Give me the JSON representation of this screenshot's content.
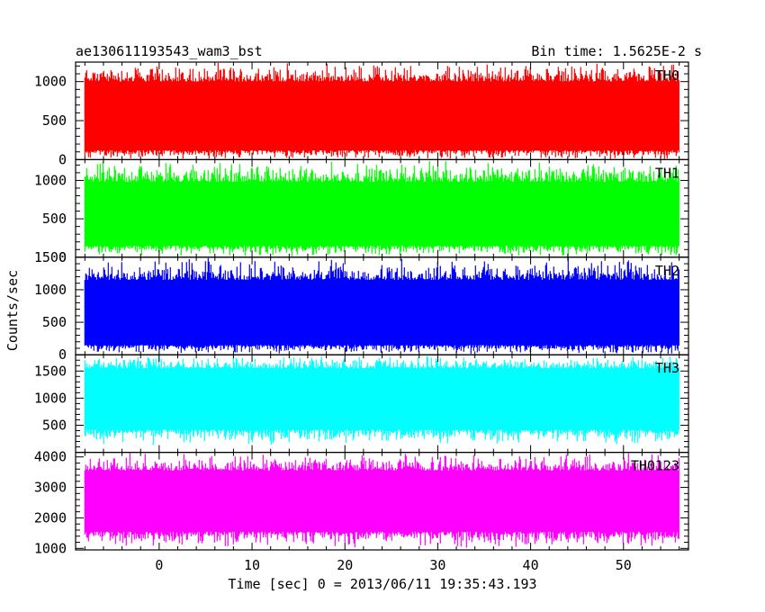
{
  "chart_data": {
    "type": "line",
    "title": "ae130611193543_wam3_bst",
    "subtitle": "Bin time: 1.5625E-2 s",
    "xlabel": "Time [sec] 0 = 2013/06/11 19:35:43.193",
    "ylabel": "Counts/sec",
    "xlim": [
      -9,
      57
    ],
    "xticks": [
      0,
      10,
      20,
      30,
      40,
      50
    ],
    "x_range_data": [
      -8,
      56
    ],
    "legend_placement": "panel top-right",
    "grid": false,
    "panels": [
      {
        "name": "TH0",
        "color": "#ff0000",
        "ylim": [
          0,
          1250
        ],
        "yticks": [
          0,
          500,
          1000
        ],
        "band": {
          "low": 120,
          "high": 1000
        },
        "spike_range": {
          "low": 0,
          "high": 1250
        },
        "mean": 560
      },
      {
        "name": "TH1",
        "color": "#00ff00",
        "ylim": [
          0,
          1270
        ],
        "yticks": [
          0,
          500,
          1000
        ],
        "band": {
          "low": 150,
          "high": 980
        },
        "spike_range": {
          "low": 0,
          "high": 1270
        },
        "mean": 560
      },
      {
        "name": "TH2",
        "color": "#0000ff",
        "ylim": [
          0,
          1500
        ],
        "yticks": [
          0,
          500,
          1000,
          1500
        ],
        "band": {
          "low": 150,
          "high": 1150
        },
        "spike_range": {
          "low": 0,
          "high": 1500
        },
        "mean": 650
      },
      {
        "name": "TH3",
        "color": "#00ffff",
        "ylim": [
          0,
          1800
        ],
        "yticks": [
          500,
          1000,
          1500
        ],
        "band": {
          "low": 420,
          "high": 1550
        },
        "spike_range": {
          "low": 120,
          "high": 1800
        },
        "mean": 1000
      },
      {
        "name": "TH0123",
        "color": "#ff00ff",
        "ylim": [
          950,
          4150
        ],
        "yticks": [
          1000,
          2000,
          3000,
          4000
        ],
        "band": {
          "low": 1550,
          "high": 3550
        },
        "spike_range": {
          "low": 1000,
          "high": 4150
        },
        "mean": 2600
      }
    ]
  }
}
